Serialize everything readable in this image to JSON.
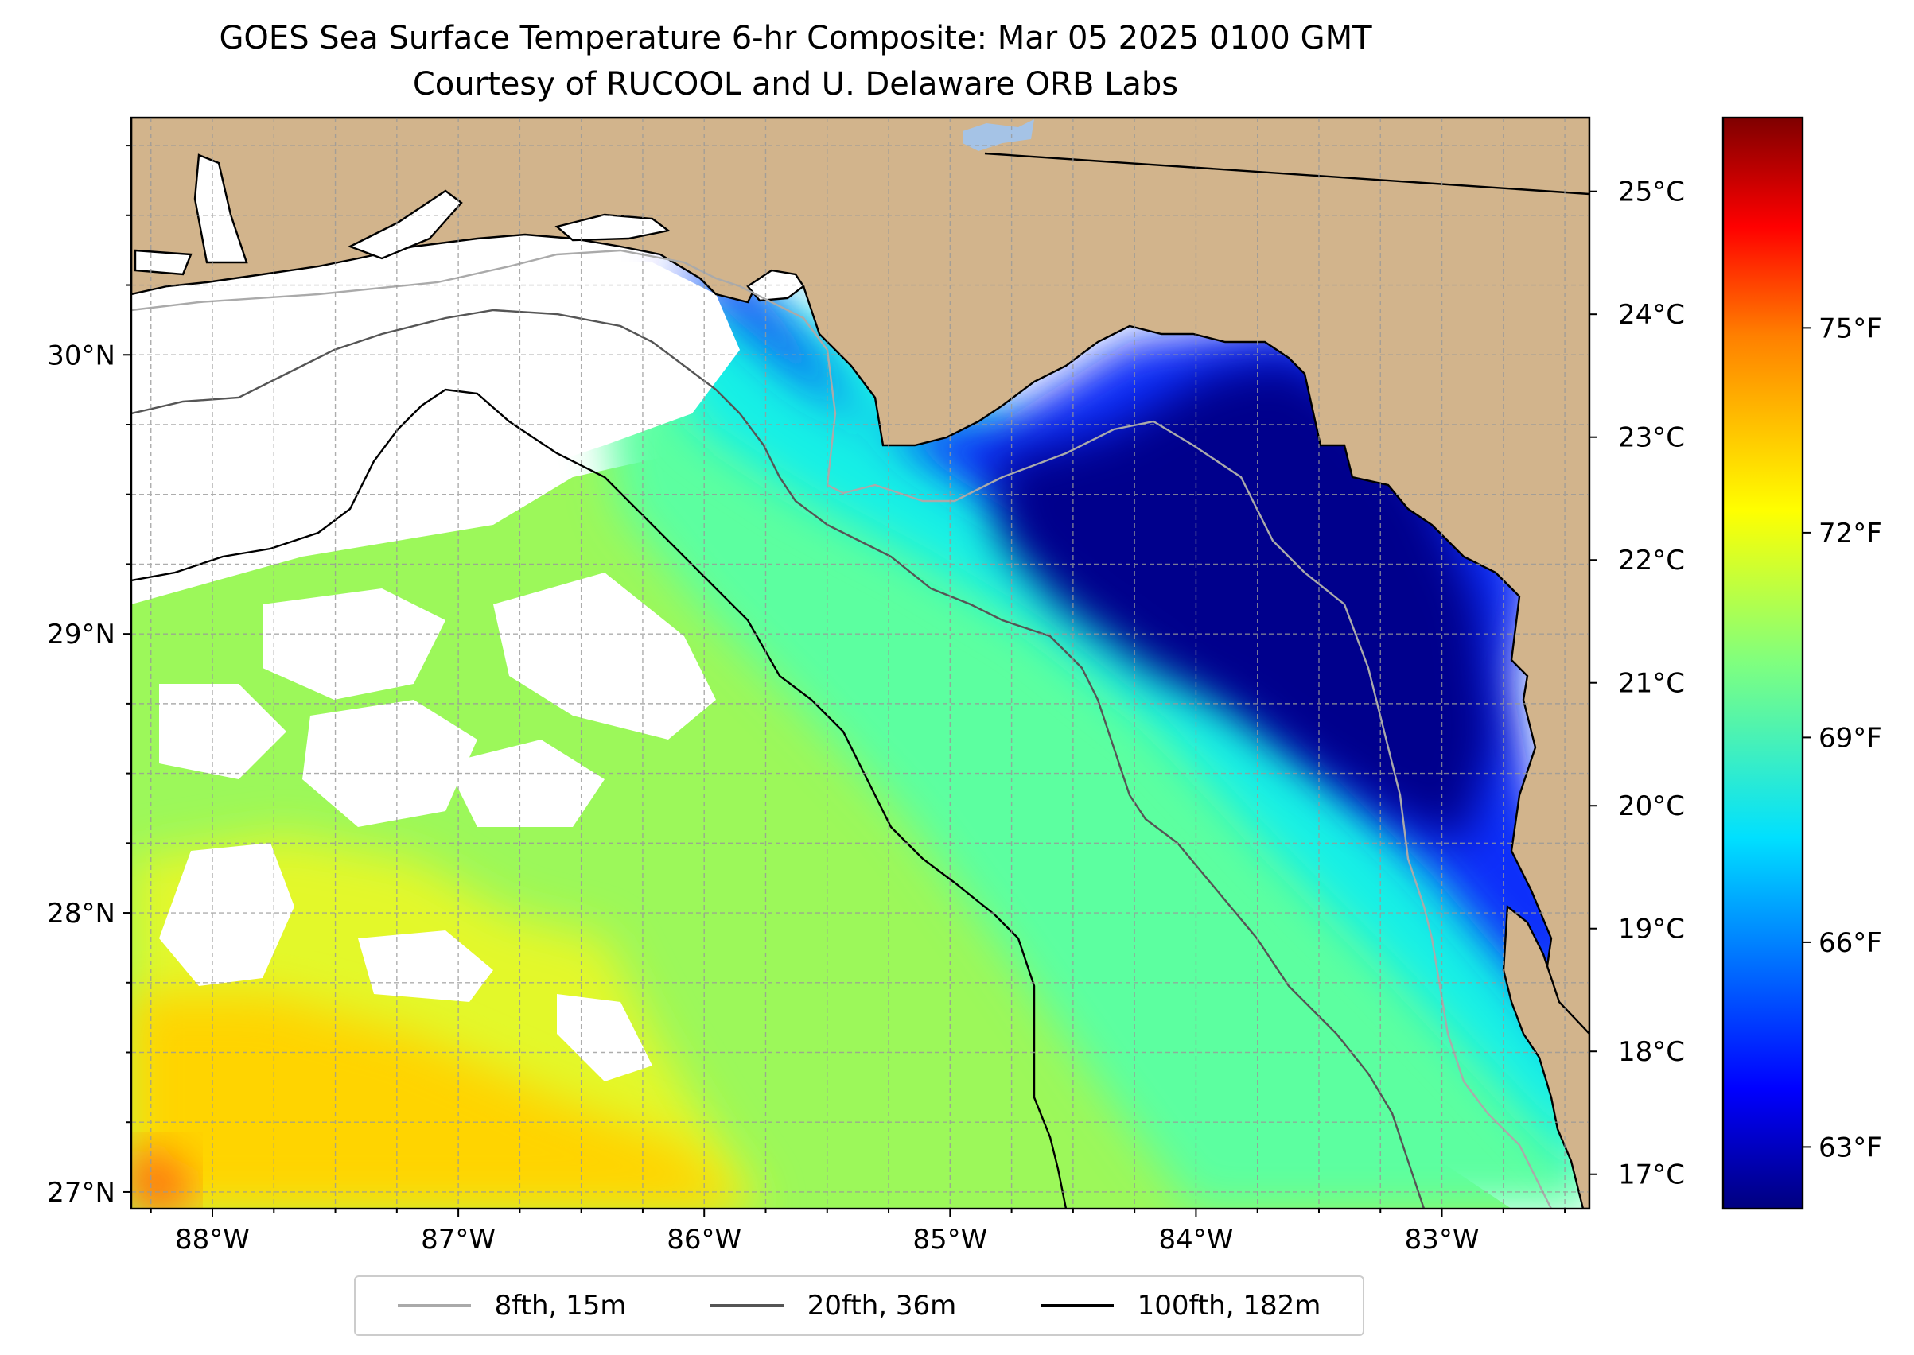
{
  "title": {
    "line1": "GOES Sea Surface Temperature 6-hr Composite: Mar 05 2025 0100 GMT",
    "line2": "Courtesy of RUCOOL and U. Delaware ORB Labs"
  },
  "map": {
    "lon_range": [
      -88.33,
      -82.4
    ],
    "lat_range": [
      26.94,
      30.85
    ],
    "lon_ticks": [
      {
        "value": -88,
        "label": "88°W"
      },
      {
        "value": -87,
        "label": "87°W"
      },
      {
        "value": -86,
        "label": "86°W"
      },
      {
        "value": -85,
        "label": "85°W"
      },
      {
        "value": -84,
        "label": "84°W"
      },
      {
        "value": -83,
        "label": "83°W"
      }
    ],
    "lat_ticks": [
      {
        "value": 27,
        "label": "27°N"
      },
      {
        "value": 28,
        "label": "28°N"
      },
      {
        "value": 29,
        "label": "29°N"
      },
      {
        "value": 30,
        "label": "30°N"
      }
    ],
    "land_color": "#d2b48c",
    "no_data_color": "#ffffff"
  },
  "colorbar": {
    "celsius_range": [
      16.72,
      25.6
    ],
    "celsius_ticks": [
      {
        "value": 17,
        "label": "17°C"
      },
      {
        "value": 18,
        "label": "18°C"
      },
      {
        "value": 19,
        "label": "19°C"
      },
      {
        "value": 20,
        "label": "20°C"
      },
      {
        "value": 21,
        "label": "21°C"
      },
      {
        "value": 22,
        "label": "22°C"
      },
      {
        "value": 23,
        "label": "23°C"
      },
      {
        "value": 24,
        "label": "24°C"
      },
      {
        "value": 25,
        "label": "25°C"
      }
    ],
    "fahrenheit_ticks": [
      {
        "value": 63,
        "label": "63°F"
      },
      {
        "value": 66,
        "label": "66°F"
      },
      {
        "value": 69,
        "label": "69°F"
      },
      {
        "value": 72,
        "label": "72°F"
      },
      {
        "value": 75,
        "label": "75°F"
      }
    ],
    "colormap": [
      "#00007f",
      "#0000ff",
      "#007fff",
      "#00ffff",
      "#7fff7f",
      "#ffff00",
      "#ff7f00",
      "#ff0000",
      "#7f0000"
    ]
  },
  "legend": {
    "items": [
      {
        "label": "8fth, 15m",
        "color": "#aaaaaa"
      },
      {
        "label": "20fth, 36m",
        "color": "#555555"
      },
      {
        "label": "100fth, 182m",
        "color": "#000000"
      }
    ]
  }
}
